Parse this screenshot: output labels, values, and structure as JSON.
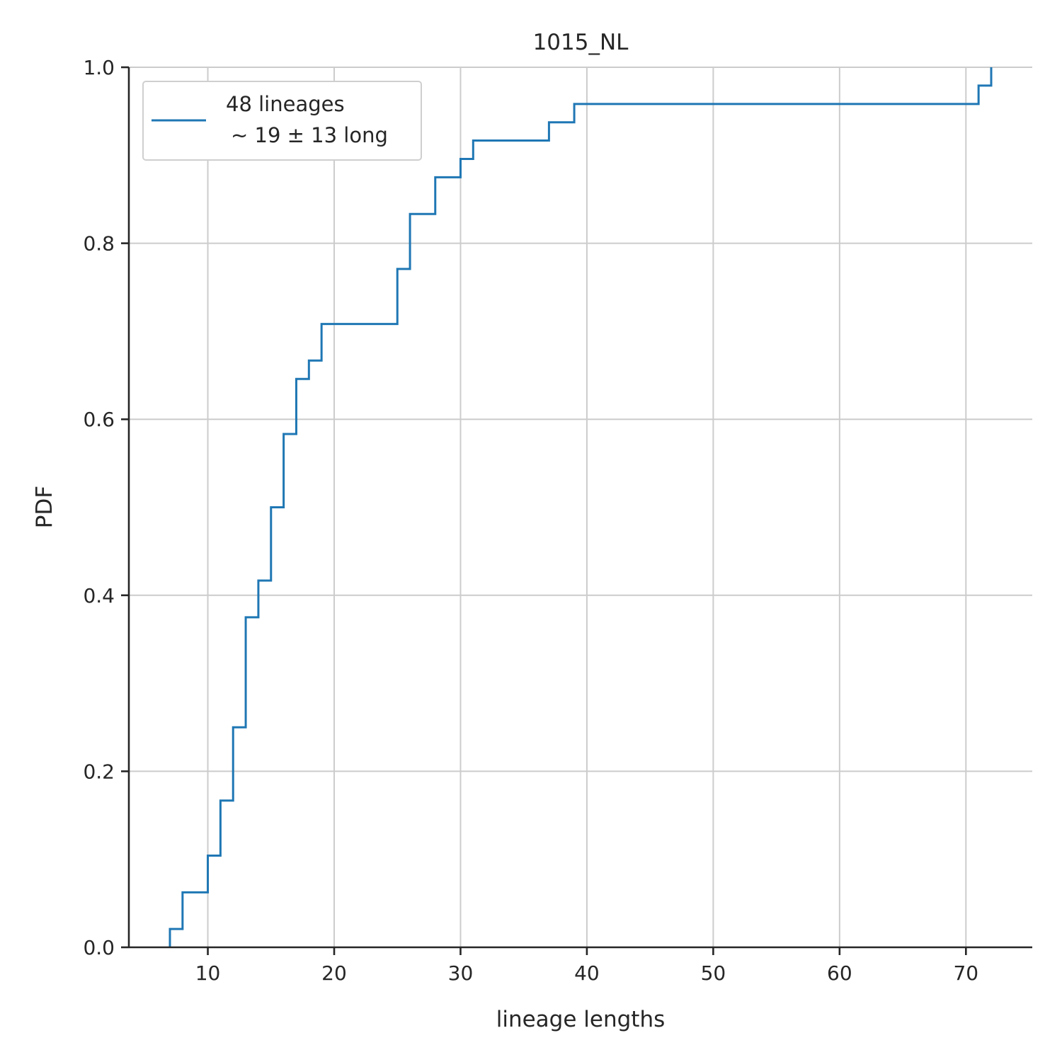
{
  "chart_data": {
    "type": "line",
    "title": "1015_NL",
    "xlabel": "lineage lengths",
    "ylabel": "PDF",
    "xlim": [
      3.75,
      75.25
    ],
    "ylim": [
      0.0,
      1.0
    ],
    "xticks": [
      10,
      20,
      30,
      40,
      50,
      60,
      70
    ],
    "xtick_labels": [
      "10",
      "20",
      "30",
      "40",
      "50",
      "60",
      "70"
    ],
    "yticks": [
      0.0,
      0.2,
      0.4,
      0.6,
      0.8,
      1.0
    ],
    "ytick_labels": [
      "0.0",
      "0.2",
      "0.4",
      "0.6",
      "0.8",
      "1.0"
    ],
    "grid": true,
    "legend_position": "top-left",
    "series": [
      {
        "name": "48 lineages",
        "name_line2": "~ 19 ± 13 long",
        "color": "#1f77b4",
        "x": [
          7,
          8,
          10,
          11,
          12,
          13,
          14,
          15,
          16,
          17,
          18,
          19,
          25,
          26,
          28,
          30,
          31,
          37,
          39,
          71,
          72
        ],
        "y": [
          0.0208,
          0.0625,
          0.1042,
          0.1667,
          0.25,
          0.375,
          0.4167,
          0.5,
          0.5833,
          0.6458,
          0.6667,
          0.7083,
          0.7708,
          0.8333,
          0.875,
          0.8958,
          0.9167,
          0.9375,
          0.9583,
          0.9792,
          1.0
        ]
      }
    ]
  }
}
